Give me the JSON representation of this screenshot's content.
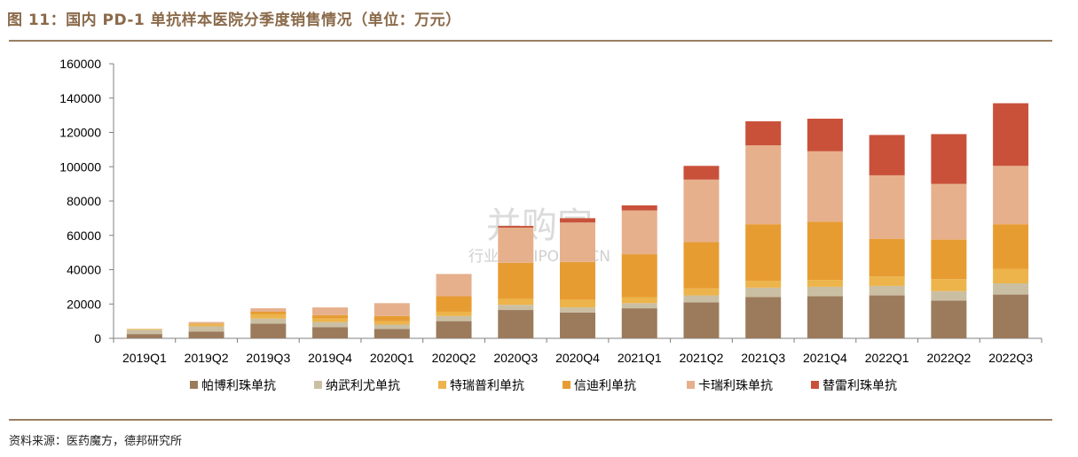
{
  "title": "图 11：国内 PD-1 单抗样本医院分季度销售情况（单位：万元）",
  "source": "资料来源：医药魔方，德邦研究所",
  "watermark": {
    "main": "并购家",
    "sub": "行业报告 IPOIPO.CN"
  },
  "colors": {
    "帕博利珠单抗": "#9b7b5c",
    "纳武利尤单抗": "#cbbfa3",
    "特瑞普利单抗": "#ecb44b",
    "信迪利单抗": "#e79c32",
    "卡瑞利珠单抗": "#e6b08c",
    "替雷利珠单抗": "#c9513a"
  },
  "chart_data": {
    "type": "bar",
    "stacked": true,
    "categories": [
      "2019Q1",
      "2019Q2",
      "2019Q3",
      "2019Q4",
      "2020Q1",
      "2020Q2",
      "2020Q3",
      "2020Q4",
      "2021Q1",
      "2021Q2",
      "2021Q3",
      "2021Q4",
      "2022Q1",
      "2022Q2",
      "2022Q3"
    ],
    "ylim": [
      0,
      160000
    ],
    "yticks": [
      0,
      20000,
      40000,
      60000,
      80000,
      100000,
      120000,
      140000,
      160000
    ],
    "legend_position": "bottom",
    "grid": false,
    "series": [
      {
        "name": "帕博利珠单抗",
        "values": [
          2500,
          4000,
          8500,
          6500,
          5500,
          10000,
          16500,
          15000,
          17500,
          21000,
          24000,
          24500,
          25000,
          22000,
          25500
        ]
      },
      {
        "name": "纳武利尤单抗",
        "values": [
          2500,
          3000,
          3000,
          3000,
          2500,
          3000,
          3000,
          3000,
          3000,
          4000,
          5500,
          5500,
          5500,
          5500,
          6500
        ]
      },
      {
        "name": "特瑞普利单抗",
        "values": [
          500,
          1500,
          2500,
          2000,
          2000,
          2500,
          3500,
          4500,
          3500,
          4000,
          4000,
          4000,
          5500,
          7000,
          8500
        ]
      },
      {
        "name": "信迪利单抗",
        "values": [
          0,
          0,
          1500,
          2000,
          3000,
          9000,
          21000,
          22000,
          25000,
          27000,
          33000,
          34000,
          22000,
          23000,
          26000
        ]
      },
      {
        "name": "卡瑞利珠单抗",
        "values": [
          0,
          1000,
          2000,
          4500,
          7500,
          13000,
          20500,
          23000,
          25500,
          36500,
          46000,
          41000,
          37000,
          32500,
          34000
        ]
      },
      {
        "name": "替雷利珠单抗",
        "values": [
          0,
          0,
          0,
          0,
          0,
          0,
          1000,
          2500,
          3000,
          8000,
          14000,
          19000,
          23500,
          29000,
          36500
        ]
      }
    ]
  }
}
